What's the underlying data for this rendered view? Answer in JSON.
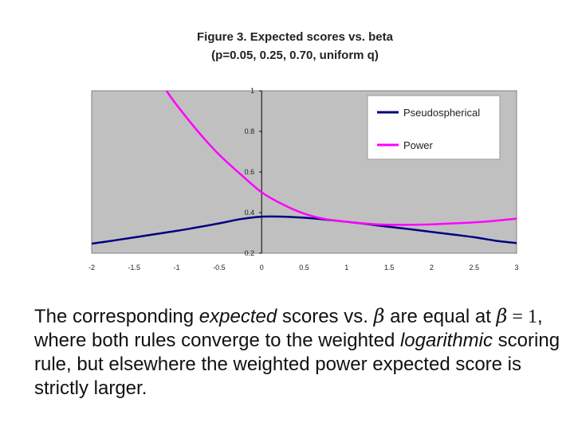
{
  "chart_data": {
    "type": "line",
    "title_line1": "Figure 3.  Expected scores vs. beta",
    "title_line2": "(p=0.05, 0.25, 0.70, uniform q)",
    "xlabel": "",
    "ylabel": "",
    "xlim": [
      -2,
      3
    ],
    "ylim": [
      0.2,
      1
    ],
    "x_ticks": [
      "-2",
      "-1.5",
      "-1",
      "-0.5",
      "0",
      "0.5",
      "1",
      "1.5",
      "2",
      "2.5",
      "3"
    ],
    "y_ticks": [
      "0.2",
      "0.4",
      "0.6",
      "0.8",
      "1"
    ],
    "grid": false,
    "legend_position": "top-right",
    "background_color": "#c0c0c0",
    "series": [
      {
        "name": "Pseudospherical",
        "color": "#000080",
        "x": [
          -2,
          -1.75,
          -1.5,
          -1.25,
          -1,
          -0.75,
          -0.5,
          -0.25,
          0,
          0.25,
          0.5,
          0.75,
          1,
          1.25,
          1.5,
          1.75,
          2,
          2.25,
          2.5,
          2.75,
          3
        ],
        "y": [
          0.247,
          0.262,
          0.278,
          0.294,
          0.31,
          0.328,
          0.347,
          0.368,
          0.38,
          0.38,
          0.375,
          0.366,
          0.355,
          0.343,
          0.33,
          0.318,
          0.305,
          0.292,
          0.279,
          0.262,
          0.25
        ]
      },
      {
        "name": "Power",
        "color": "#ff00ff",
        "x": [
          -1.12,
          -1,
          -0.75,
          -0.5,
          -0.25,
          0,
          0.25,
          0.5,
          0.75,
          1,
          1.25,
          1.5,
          1.75,
          2,
          2.25,
          2.5,
          2.75,
          3
        ],
        "y": [
          1.0,
          0.93,
          0.8,
          0.685,
          0.59,
          0.5,
          0.44,
          0.395,
          0.368,
          0.355,
          0.345,
          0.34,
          0.34,
          0.342,
          0.347,
          0.352,
          0.36,
          0.37
        ]
      }
    ]
  },
  "caption": {
    "p1": "The corresponding ",
    "p1_em": "expected",
    "p2": " scores vs. ",
    "beta_symbol": "β",
    "p3": " are equal at ",
    "p4": " = 1",
    "p5": ", where both rules converge to the weighted ",
    "p5_em": "logarithmic",
    "p6": " scoring rule, but elsewhere the weighted power expected score is strictly larger."
  }
}
